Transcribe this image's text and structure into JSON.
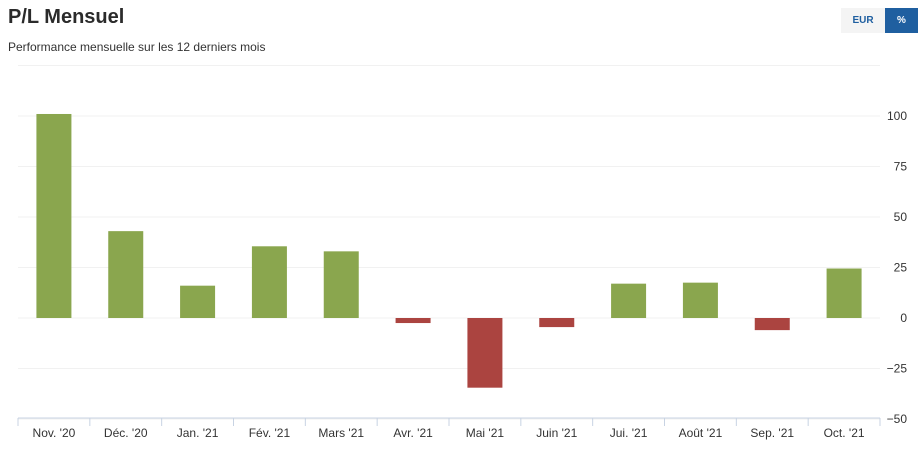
{
  "header": {
    "title": "P/L Mensuel",
    "subtitle": "Performance mensuelle sur les 12 derniers mois"
  },
  "toggle": {
    "eur_label": "EUR",
    "pct_label": "%",
    "selected": "%"
  },
  "colors": {
    "positive": "#8aa64e",
    "negative": "#ab4440",
    "accent": "#1f5fa0"
  },
  "chart_data": {
    "type": "bar",
    "categories": [
      "Nov. '20",
      "Déc. '20",
      "Jan. '21",
      "Fév. '21",
      "Mars '21",
      "Avr. '21",
      "Mai '21",
      "Juin '21",
      "Jui. '21",
      "Août '21",
      "Sep. '21",
      "Oct. '21"
    ],
    "values": [
      101,
      43,
      16,
      35.5,
      33,
      -2.5,
      -34.5,
      -4.5,
      17,
      17.5,
      -6,
      24.5
    ],
    "title": "P/L Mensuel",
    "subtitle": "Performance mensuelle sur les 12 derniers mois",
    "ylim": [
      -50,
      125
    ],
    "yticks": [
      100,
      75,
      50,
      25,
      0,
      -25,
      -50
    ],
    "ytick_labels": [
      "100",
      "75",
      "50",
      "25",
      "0",
      "−25",
      "−50"
    ],
    "grid": true,
    "legend": "none"
  }
}
